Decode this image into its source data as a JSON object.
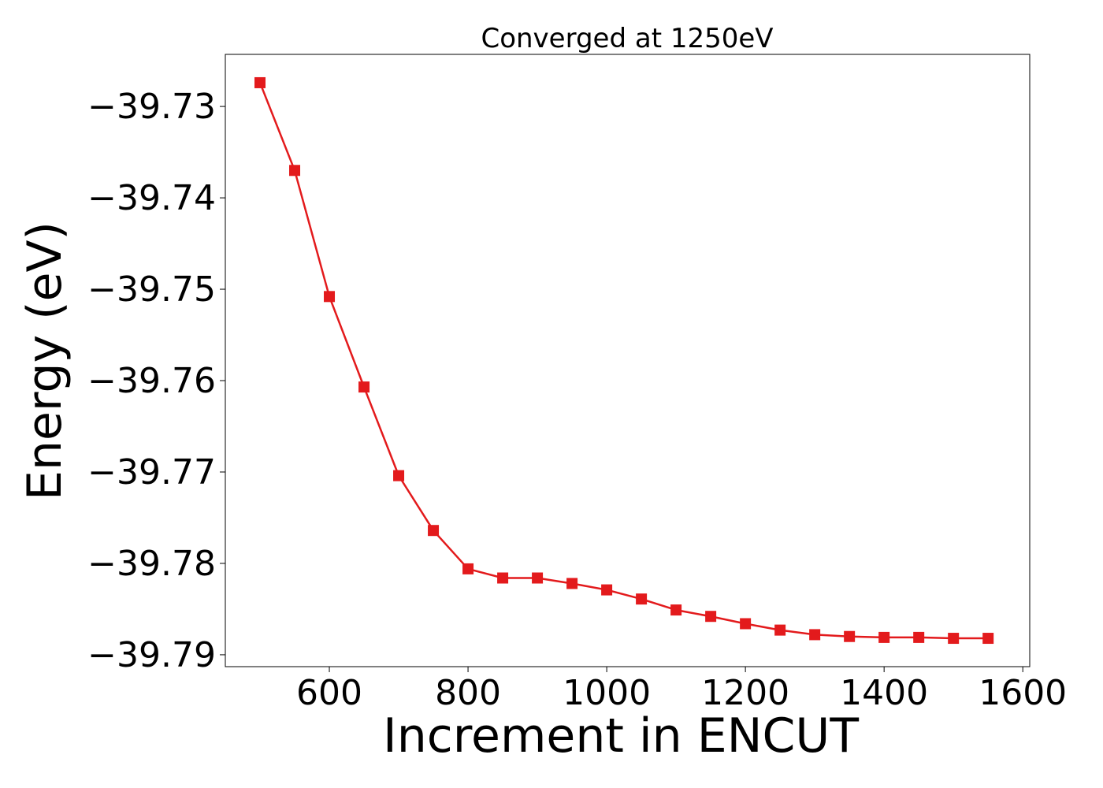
{
  "chart_data": {
    "type": "line",
    "title": "Converged at 1250eV",
    "xlabel": "Increment in ENCUT",
    "ylabel": "Energy (eV)",
    "xlim": [
      450,
      1610
    ],
    "ylim": [
      -39.7913,
      -39.7243
    ],
    "xticks": [
      600,
      800,
      1000,
      1200,
      1400,
      1600
    ],
    "yticks": [
      -39.73,
      -39.74,
      -39.75,
      -39.76,
      -39.77,
      -39.78,
      -39.79
    ],
    "ytick_labels": [
      "−39.73",
      "−39.74",
      "−39.75",
      "−39.76",
      "−39.77",
      "−39.78",
      "−39.79"
    ],
    "grid": false,
    "legend": "none",
    "series": [
      {
        "color": "#e31a1c",
        "marker": "square",
        "x": [
          500,
          550,
          600,
          650,
          700,
          750,
          800,
          850,
          900,
          950,
          1000,
          1050,
          1100,
          1150,
          1200,
          1250,
          1300,
          1350,
          1400,
          1450,
          1500,
          1550
        ],
        "y": [
          -39.7274,
          -39.737,
          -39.7508,
          -39.7607,
          -39.7704,
          -39.7764,
          -39.7806,
          -39.7816,
          -39.7816,
          -39.7822,
          -39.7829,
          -39.7839,
          -39.7851,
          -39.7858,
          -39.7866,
          -39.7873,
          -39.7878,
          -39.788,
          -39.7881,
          -39.7881,
          -39.7882,
          -39.7882
        ]
      }
    ]
  }
}
